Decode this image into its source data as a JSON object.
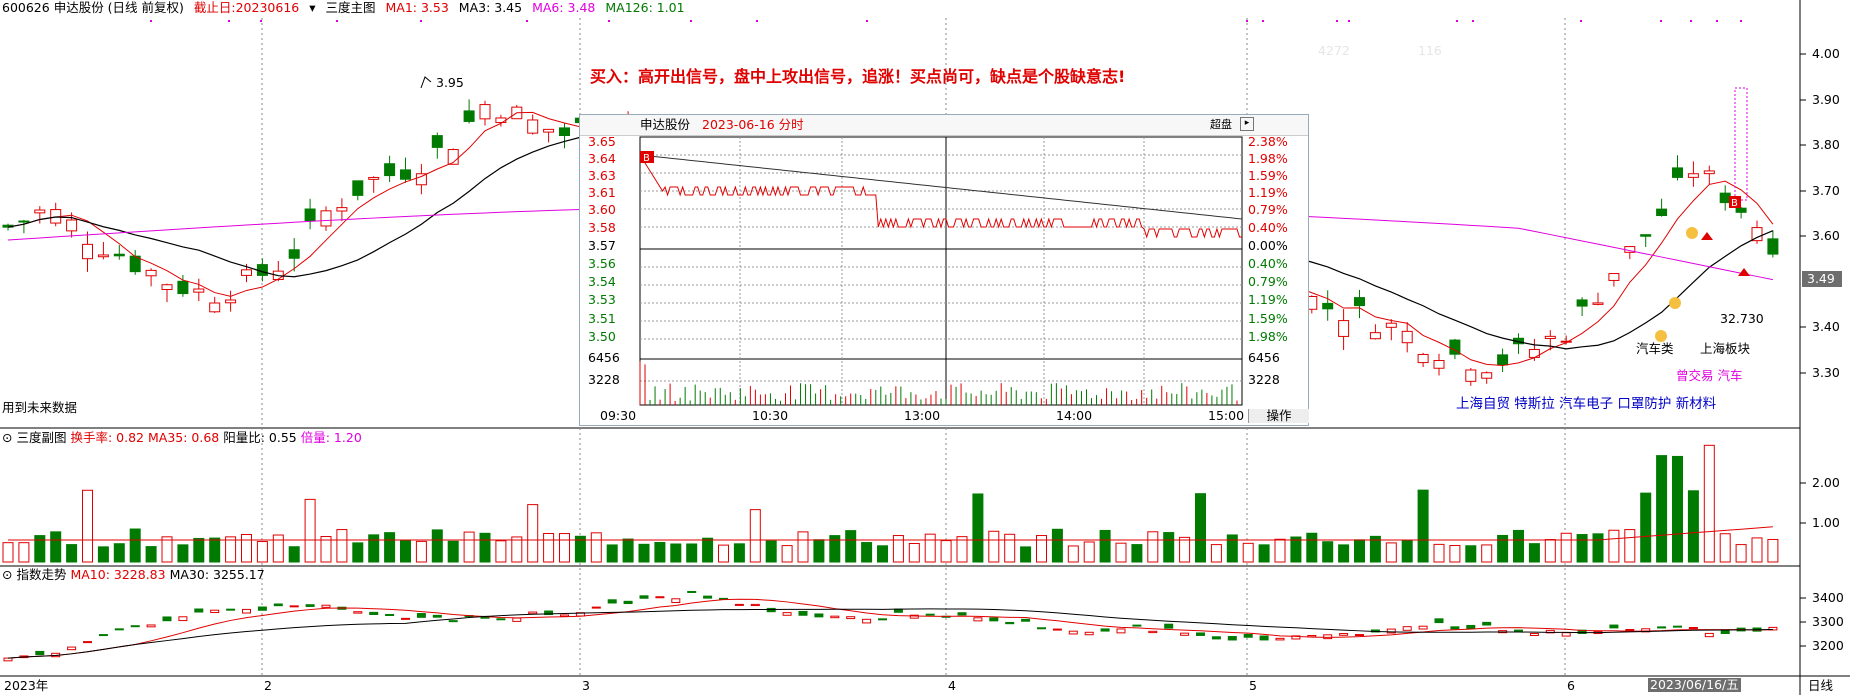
{
  "header": {
    "code_name": "600626 申达股份 (日线 前复权)",
    "cutoff": "截止日:20230616",
    "main_label": "三度主图",
    "ma1": "MA1: 3.53",
    "ma3": "MA3: 3.45",
    "ma6": "MA6: 3.48",
    "ma126": "MA126: 1.01"
  },
  "signal_text": "买入：高开出信号，盘中上攻出信号，追涨！买点尚可，缺点是个股缺意志!",
  "main_chart": {
    "price_axis": [
      "4.00",
      "3.90",
      "3.80",
      "3.70",
      "3.60",
      "3.49",
      "3.40",
      "3.30"
    ],
    "current_price": "3.49",
    "high_label": "3.95",
    "side_value": "32.730",
    "faint_a": "4272",
    "faint_b": "116",
    "future_data": "用到未来数据",
    "sector_a": "汽车类",
    "sector_b": "上海板块",
    "concept_row1": [
      "曾交易",
      "汽车"
    ],
    "concept_row2": [
      "上海自贸",
      "特斯拉",
      "汽车电子",
      "口罩防护",
      "新材料"
    ]
  },
  "sub_panel": {
    "name": "三度副图",
    "turnover": "换手率: 0.82",
    "ma35": "MA35: 0.68",
    "yang_ratio": "阳量比: 0.55",
    "bei_liang": "倍量: 1.20",
    "axis": [
      "2.00",
      "1.00"
    ]
  },
  "index_panel": {
    "name": "指数走势",
    "ma10": "MA10: 3228.83",
    "ma30": "MA30: 3255.17",
    "axis": [
      "3400",
      "3300",
      "3200"
    ]
  },
  "bottom_axis": {
    "labels": [
      "2023年",
      "2",
      "3",
      "4",
      "5",
      "6"
    ],
    "selected_date": "2023/06/16/五",
    "period": "日线"
  },
  "intraday": {
    "title_name": "申达股份",
    "title_date": "2023-06-16 分时",
    "overlay": "超盘",
    "left_axis": [
      "3.65",
      "3.64",
      "3.63",
      "3.61",
      "3.60",
      "3.58",
      "3.57",
      "3.56",
      "3.54",
      "3.53",
      "3.51",
      "3.50"
    ],
    "right_axis": [
      "2.38%",
      "1.98%",
      "1.59%",
      "1.19%",
      "0.79%",
      "0.40%",
      "0.00%",
      "0.40%",
      "0.79%",
      "1.19%",
      "1.59%",
      "1.98%"
    ],
    "vol_axis": [
      "6456",
      "3228"
    ],
    "time_labels": [
      "09:30",
      "10:30",
      "13:00",
      "14:00",
      "15:00"
    ],
    "operate": "操作",
    "buy_marker": "B"
  },
  "colors": {
    "up": "#e00000",
    "down": "#007a00",
    "ma1": "#e00000",
    "ma3": "#000000",
    "ma6": "#e000e0",
    "ma126": "#007a00",
    "concept": "#0000c8",
    "signal": "#e00000"
  },
  "markers": {
    "buy": "B",
    "coin": "$"
  }
}
